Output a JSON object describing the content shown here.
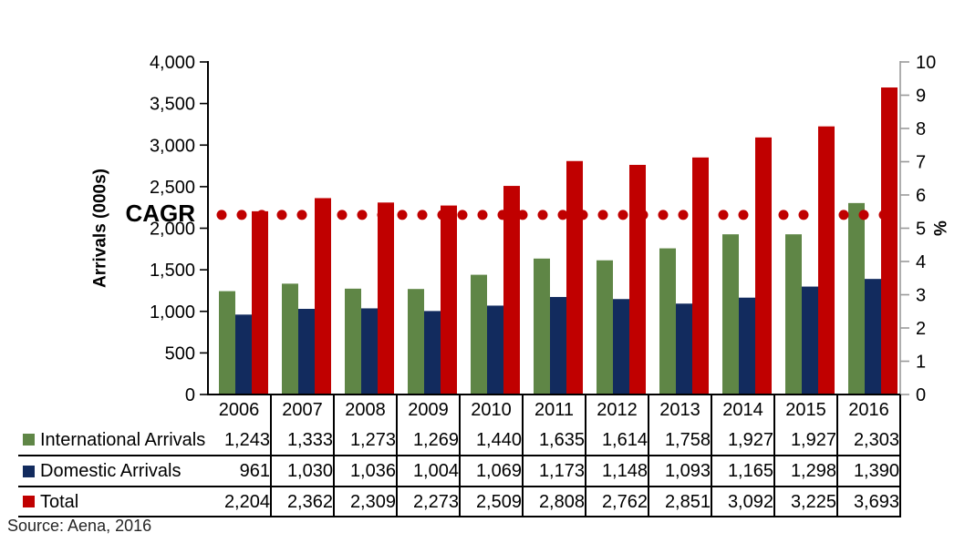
{
  "chart_data": {
    "type": "bar",
    "title": "",
    "xlabel": "",
    "ylabel": "Arrivals (000s)",
    "y2label": "%",
    "ylim": [
      0,
      4000
    ],
    "y_step": 500,
    "y2lim": [
      0,
      10
    ],
    "y2_step": 1,
    "grid": false,
    "legend_position": "table-left",
    "categories": [
      "2006",
      "2007",
      "2008",
      "2009",
      "2010",
      "2011",
      "2012",
      "2013",
      "2014",
      "2015",
      "2016"
    ],
    "series": [
      {
        "name": "International Arrivals",
        "color": "#5f8646",
        "axis": "left",
        "values": [
          1243,
          1333,
          1273,
          1269,
          1440,
          1635,
          1614,
          1758,
          1927,
          1927,
          2303
        ]
      },
      {
        "name": "Domestic Arrivals",
        "color": "#122b5e",
        "axis": "left",
        "values": [
          961,
          1030,
          1036,
          1004,
          1069,
          1173,
          1148,
          1093,
          1165,
          1298,
          1390
        ]
      },
      {
        "name": "Total",
        "color": "#c00000",
        "axis": "left",
        "values": [
          2204,
          2362,
          2309,
          2273,
          2509,
          2808,
          2762,
          2851,
          3092,
          3225,
          3693
        ]
      }
    ],
    "cagr_line": {
      "label": "CAGR",
      "value_pct": 5.4,
      "color": "#c00000",
      "style": "dotted"
    },
    "axis_colors": {
      "left_axis": "#000000",
      "right_axis": "#999999",
      "text": "#000000"
    },
    "source": "Source: Aena, 2016"
  }
}
